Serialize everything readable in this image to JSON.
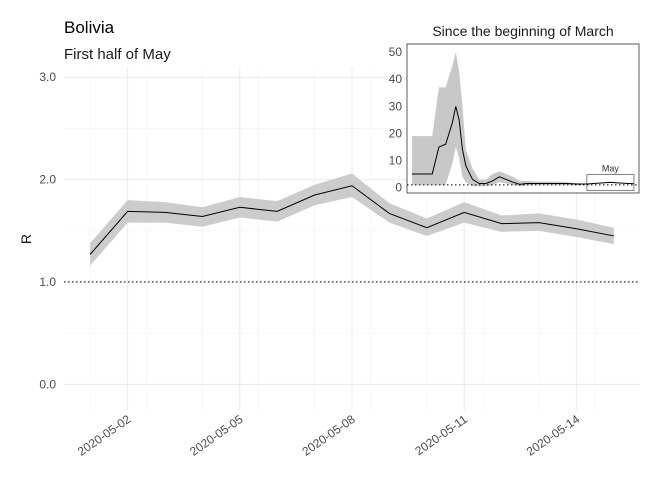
{
  "chart_data": [
    {
      "type": "line",
      "title": "Bolivia",
      "subtitle": "First half of May",
      "ylabel": "R",
      "xlabel": "",
      "ylim": [
        -0.25,
        3.1
      ],
      "yticks": [
        0.0,
        1.0,
        2.0,
        3.0
      ],
      "ytick_labels": [
        "0.0",
        "1.0",
        "2.0",
        "3.0"
      ],
      "xticks": [
        "2020-05-02",
        "2020-05-05",
        "2020-05-08",
        "2020-05-11",
        "2020-05-14"
      ],
      "reference_line": 1.0,
      "grid": true,
      "x": [
        "2020-05-01",
        "2020-05-02",
        "2020-05-03",
        "2020-05-04",
        "2020-05-05",
        "2020-05-06",
        "2020-05-07",
        "2020-05-08",
        "2020-05-09",
        "2020-05-10",
        "2020-05-11",
        "2020-05-12",
        "2020-05-13",
        "2020-05-14",
        "2020-05-15"
      ],
      "series": [
        {
          "values": [
            1.27,
            1.69,
            1.68,
            1.64,
            1.73,
            1.69,
            1.85,
            1.94,
            1.67,
            1.53,
            1.68,
            1.57,
            1.58,
            1.52,
            1.45
          ],
          "lower": [
            1.16,
            1.58,
            1.58,
            1.54,
            1.63,
            1.59,
            1.75,
            1.83,
            1.58,
            1.45,
            1.58,
            1.49,
            1.5,
            1.44,
            1.37
          ],
          "upper": [
            1.38,
            1.8,
            1.78,
            1.73,
            1.83,
            1.79,
            1.95,
            2.06,
            1.77,
            1.62,
            1.78,
            1.65,
            1.67,
            1.61,
            1.53
          ]
        }
      ]
    },
    {
      "type": "line",
      "title": "Since the beginning of March",
      "ylim": [
        -2,
        53
      ],
      "yticks": [
        0,
        10,
        20,
        30,
        40,
        50
      ],
      "ytick_labels": [
        "0",
        "10",
        "20",
        "30",
        "40",
        "50"
      ],
      "reference_line": 1.0,
      "annotation": "May",
      "annotation_range": [
        "2020-05-01",
        "2020-05-15"
      ],
      "x": [
        "2020-03-10",
        "2020-03-14",
        "2020-03-16",
        "2020-03-18",
        "2020-03-20",
        "2020-03-22",
        "2020-03-23",
        "2020-03-24",
        "2020-03-25",
        "2020-03-26",
        "2020-03-28",
        "2020-03-30",
        "2020-04-01",
        "2020-04-03",
        "2020-04-05",
        "2020-04-07",
        "2020-04-09",
        "2020-04-11",
        "2020-04-13",
        "2020-04-16",
        "2020-04-19",
        "2020-04-22",
        "2020-04-25",
        "2020-04-28",
        "2020-05-01",
        "2020-05-04",
        "2020-05-08",
        "2020-05-12",
        "2020-05-15"
      ],
      "series": [
        {
          "values": [
            5,
            5,
            5,
            15,
            16,
            24,
            30,
            25,
            14,
            8,
            3,
            1.5,
            1.5,
            2.5,
            4,
            3,
            2,
            1.2,
            1.5,
            1.5,
            1.5,
            1.5,
            1.5,
            1.3,
            1.3,
            1.6,
            1.9,
            1.6,
            1.4
          ],
          "lower": [
            1,
            1,
            1,
            1,
            1,
            9,
            15,
            11,
            4,
            2,
            0.5,
            0.5,
            0.5,
            1,
            2,
            1.5,
            1,
            0.5,
            0.8,
            1,
            1,
            1,
            1,
            1,
            1.2,
            1.5,
            1.8,
            1.5,
            1.3
          ],
          "upper": [
            19,
            19,
            19,
            37,
            37,
            45,
            50,
            43,
            30,
            14,
            7,
            3,
            3,
            5,
            6,
            5,
            4,
            2.5,
            2.5,
            2.2,
            2.2,
            2.2,
            2,
            1.6,
            1.4,
            1.7,
            2.1,
            1.7,
            1.5
          ]
        }
      ]
    }
  ]
}
